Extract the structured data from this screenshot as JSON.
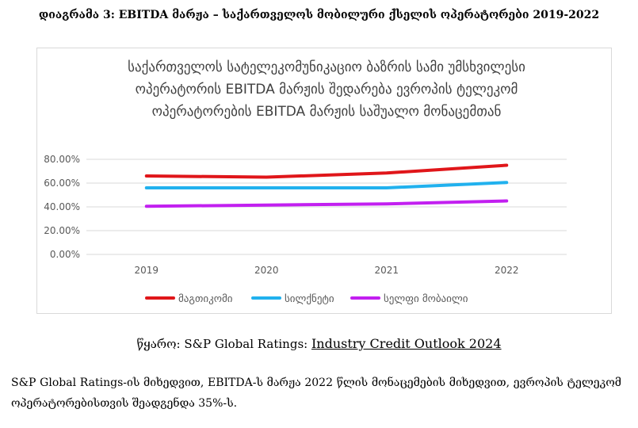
{
  "document": {
    "caption": "დიაგრამა 3: EBITDA მარჟა – საქართველოს მობილური ქსელის ოპერატორები 2019-2022",
    "source_label": "წყარო: ",
    "source_org": "S&P Global Ratings: ",
    "source_link": "Industry Credit Outlook 2024",
    "paragraph": "S&P Global Ratings-ის მიხედვით, EBITDA-ს მარჟა 2022 წლის მონაცემების მიხედვით, ევროპის ტელეკომ ოპერატორებისთვის შეადგენდა 35%-ს."
  },
  "chart_data": {
    "type": "line",
    "title": "საქართველოს სატელეკომუნიკაციო ბაზრის სამი უმსხვილესი ოპერატორის EBITDA მარჟის შედარება ევროპის ტელეკომ ოპერატორების EBITDA მარჟის საშუალო მონაცემთან",
    "categories": [
      "2019",
      "2020",
      "2021",
      "2022"
    ],
    "y_ticks": [
      "0.00%",
      "20.00%",
      "40.00%",
      "60.00%",
      "80.00%"
    ],
    "ylim": [
      0,
      80
    ],
    "grid": true,
    "legend_position": "bottom",
    "series": [
      {
        "name": "მაგთიკომი",
        "values": [
          66,
          65,
          68.5,
          75
        ],
        "color": "#e0161a"
      },
      {
        "name": "სილქნეტი",
        "values": [
          56,
          56,
          56,
          60.5
        ],
        "color": "#21b1ee"
      },
      {
        "name": "სელფი მობაილი",
        "values": [
          40.5,
          41.5,
          42.5,
          45
        ],
        "color": "#c21ff0"
      }
    ]
  }
}
